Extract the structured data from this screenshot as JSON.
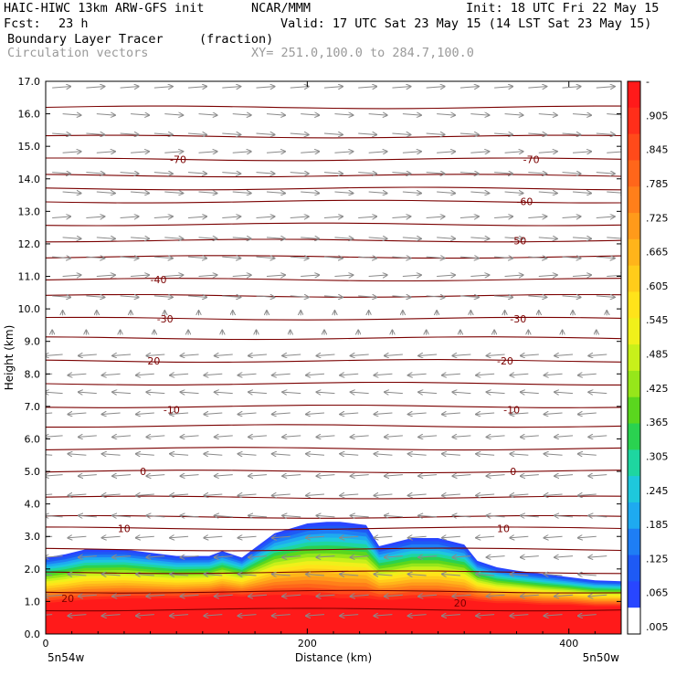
{
  "header": {
    "model": "HAIC-HIWC 13km ARW-GFS init",
    "org": "NCAR/MMM",
    "init": "Init: 18 UTC Fri 22 May 15",
    "fcst_label": "Fcst:",
    "fcst_value": "23 h",
    "valid": "Valid: 17 UTC Sat 23 May 15 (14 LST Sat 23 May 15)",
    "field_name": "Boundary Layer Tracer",
    "field_units": "(fraction)",
    "vector_field": "Circulation vectors",
    "xsec_endpoints": "XY= 251.0,100.0 to 284.7,100.0"
  },
  "chart_data": {
    "type": "heatmap",
    "xlabel": "Distance (km)",
    "ylabel": "Height (km)",
    "xlim": [
      0,
      440
    ],
    "ylim": [
      0,
      17
    ],
    "x_ticks": [
      "0",
      "200",
      "400"
    ],
    "x_tick_values": [
      0,
      200,
      400
    ],
    "y_ticks": [
      "0.0",
      "1.0",
      "2.0",
      "3.0",
      "4.0",
      "5.0",
      "6.0",
      "7.0",
      "8.0",
      "9.0",
      "10.0",
      "11.0",
      "12.0",
      "13.0",
      "14.0",
      "15.0",
      "16.0",
      "17.0"
    ],
    "y_tick_values": [
      0,
      1,
      2,
      3,
      4,
      5,
      6,
      7,
      8,
      9,
      10,
      11,
      12,
      13,
      14,
      15,
      16,
      17
    ],
    "endpoint_left": "5n54w",
    "endpoint_right": "5n50w",
    "colorbar": {
      "labels": [
        "-",
        ".905",
        ".845",
        ".785",
        ".725",
        ".665",
        ".605",
        ".545",
        ".485",
        ".425",
        ".365",
        ".305",
        ".245",
        ".185",
        ".125",
        ".065",
        ".005"
      ],
      "colors": [
        "#ff1a1a",
        "#ff2e1a",
        "#ff4a1a",
        "#ff661a",
        "#ff7f1a",
        "#ff9a1a",
        "#ffb41a",
        "#ffcc1a",
        "#ffe31a",
        "#f0f01a",
        "#c8f01a",
        "#96e61a",
        "#5ad71e",
        "#2ad250",
        "#1ed6a0",
        "#1ec8dc",
        "#1eaaf0",
        "#1e7ef5",
        "#1e5af5",
        "#2846ff"
      ],
      "lowest_color": "#ffffff"
    },
    "tracer_top_profile": {
      "x": [
        0,
        15,
        30,
        60,
        100,
        125,
        135,
        150,
        175,
        200,
        215,
        225,
        245,
        255,
        265,
        280,
        300,
        320,
        330,
        345,
        360,
        380,
        400,
        420,
        440
      ],
      "top_km": [
        2.35,
        2.45,
        2.6,
        2.6,
        2.4,
        2.4,
        2.55,
        2.35,
        3.1,
        3.4,
        3.45,
        3.45,
        3.35,
        2.7,
        2.8,
        2.95,
        2.95,
        2.75,
        2.25,
        2.05,
        1.95,
        1.85,
        1.75,
        1.65,
        1.62
      ],
      "red_top_km": [
        0.95,
        1.0,
        1.05,
        1.1,
        1.1,
        1.15,
        1.2,
        1.15,
        1.2,
        1.2,
        1.15,
        1.1,
        1.1,
        1.05,
        1.05,
        1.1,
        1.1,
        1.05,
        1.0,
        0.95,
        0.95,
        0.9,
        0.9,
        0.85,
        0.85
      ]
    },
    "temperature_contours": {
      "units_note": "",
      "labels": [
        {
          "text": "-70",
          "x": 95,
          "y_km": 14.6
        },
        {
          "text": "-70",
          "x": 365,
          "y_km": 14.6
        },
        {
          "text": "-60",
          "x": 360,
          "y_km": 13.3
        },
        {
          "text": "-50",
          "x": 355,
          "y_km": 12.1
        },
        {
          "text": "-40",
          "x": 80,
          "y_km": 10.9
        },
        {
          "text": "-30",
          "x": 85,
          "y_km": 9.7
        },
        {
          "text": "-30",
          "x": 355,
          "y_km": 9.7
        },
        {
          "text": "-20",
          "x": 75,
          "y_km": 8.4
        },
        {
          "text": "-20",
          "x": 345,
          "y_km": 8.4
        },
        {
          "text": "-10",
          "x": 90,
          "y_km": 6.9
        },
        {
          "text": "-10",
          "x": 350,
          "y_km": 6.9
        },
        {
          "text": "0",
          "x": 72,
          "y_km": 5.0
        },
        {
          "text": "0",
          "x": 355,
          "y_km": 5.0
        },
        {
          "text": "10",
          "x": 55,
          "y_km": 3.25
        },
        {
          "text": "10",
          "x": 345,
          "y_km": 3.25
        },
        {
          "text": "20",
          "x": 12,
          "y_km": 1.1
        },
        {
          "text": "20",
          "x": 312,
          "y_km": 0.95
        }
      ],
      "levels_km": [
        16.2,
        15.3,
        14.6,
        14.1,
        13.7,
        13.3,
        12.6,
        12.1,
        11.6,
        10.9,
        10.4,
        9.7,
        9.1,
        8.4,
        7.7,
        7.0,
        6.4,
        5.7,
        5.0,
        4.2,
        3.6,
        3.25,
        2.6,
        1.9,
        1.3,
        0.75
      ]
    },
    "vectors": {
      "rows_km": [
        16.8,
        16.0,
        15.4,
        14.8,
        14.2,
        13.6,
        12.8,
        12.2,
        11.6,
        11.0,
        10.4,
        9.8,
        9.2,
        8.6,
        8.0,
        7.4,
        6.8,
        6.1,
        5.5,
        4.9,
        4.3,
        3.6,
        3.0,
        2.4,
        1.8,
        1.2,
        0.6
      ],
      "dir": [
        1,
        1,
        1,
        1,
        1,
        1,
        1,
        1,
        1,
        1,
        1,
        0,
        0,
        -1,
        -1,
        -1,
        -1,
        -1,
        -1,
        -1,
        -1,
        -1,
        -1,
        -1,
        -1,
        -1,
        -1
      ]
    }
  }
}
